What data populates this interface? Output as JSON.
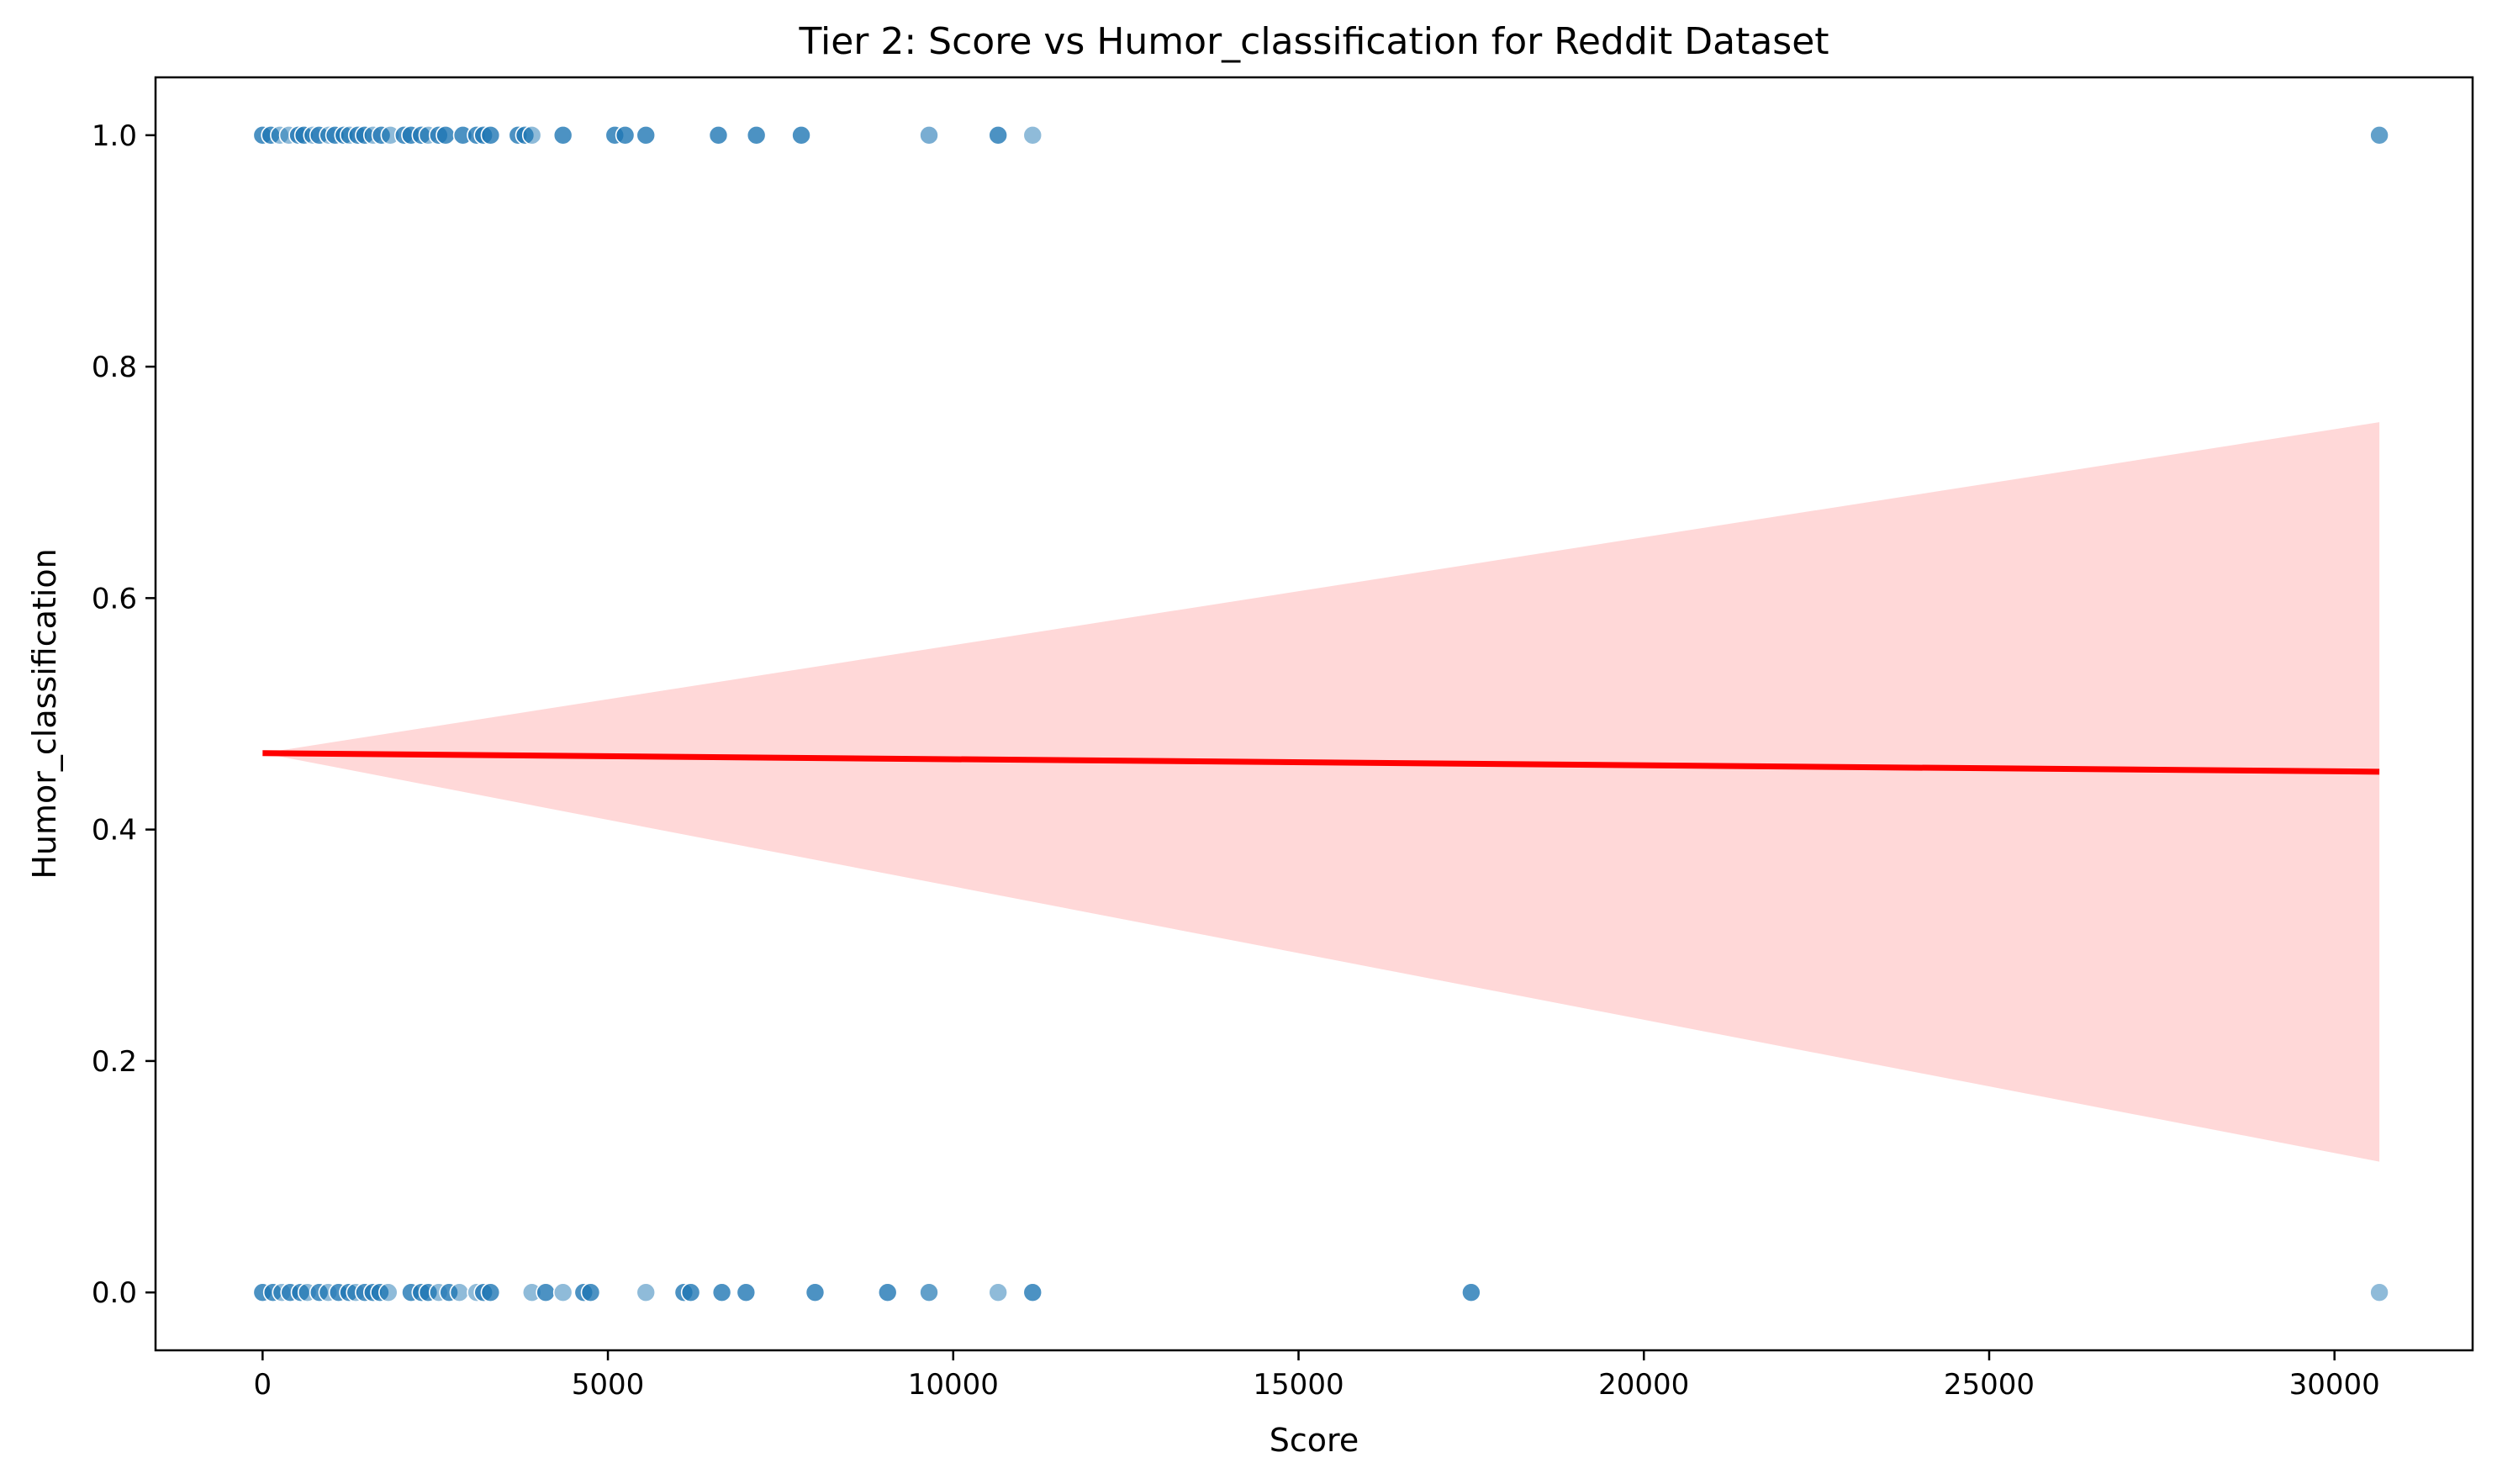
{
  "chart_data": {
    "type": "scatter",
    "title": "Tier 2: Score vs Humor_classification for Reddit Dataset",
    "xlabel": "Score",
    "ylabel": "Humor_classification",
    "xlim": [
      -1550,
      32000
    ],
    "ylim": [
      -0.05,
      1.05
    ],
    "xticks": [
      0,
      5000,
      10000,
      15000,
      20000,
      25000,
      30000
    ],
    "xtick_labels": [
      "0",
      "5000",
      "10000",
      "15000",
      "20000",
      "25000",
      "30000"
    ],
    "yticks": [
      0.0,
      0.2,
      0.4,
      0.6,
      0.8,
      1.0
    ],
    "ytick_labels": [
      "0.0",
      "0.2",
      "0.4",
      "0.6",
      "0.8",
      "1.0"
    ],
    "grid": false,
    "legend": "none",
    "colors": {
      "points": "#1f77b4",
      "regression_line": "#ff0000",
      "confidence_band": "#ffd8d8"
    },
    "series": [
      {
        "type": "scatter",
        "points": [
          {
            "x": 0,
            "y": 1,
            "alpha": 0.8
          },
          {
            "x": 120,
            "y": 1,
            "alpha": 0.8
          },
          {
            "x": 250,
            "y": 1,
            "alpha": 0.5
          },
          {
            "x": 380,
            "y": 1,
            "alpha": 0.5
          },
          {
            "x": 520,
            "y": 1,
            "alpha": 0.8
          },
          {
            "x": 600,
            "y": 1,
            "alpha": 0.8
          },
          {
            "x": 730,
            "y": 1,
            "alpha": 0.5
          },
          {
            "x": 820,
            "y": 1,
            "alpha": 0.8
          },
          {
            "x": 960,
            "y": 1,
            "alpha": 0.5
          },
          {
            "x": 1050,
            "y": 1,
            "alpha": 0.8
          },
          {
            "x": 1180,
            "y": 1,
            "alpha": 0.8
          },
          {
            "x": 1260,
            "y": 1,
            "alpha": 0.5
          },
          {
            "x": 1380,
            "y": 1,
            "alpha": 0.8
          },
          {
            "x": 1480,
            "y": 1,
            "alpha": 0.8
          },
          {
            "x": 1600,
            "y": 1,
            "alpha": 0.5
          },
          {
            "x": 1720,
            "y": 1,
            "alpha": 0.8
          },
          {
            "x": 1850,
            "y": 1,
            "alpha": 0.5
          },
          {
            "x": 2050,
            "y": 1,
            "alpha": 0.8
          },
          {
            "x": 2150,
            "y": 1,
            "alpha": 0.8
          },
          {
            "x": 2300,
            "y": 1,
            "alpha": 0.8
          },
          {
            "x": 2400,
            "y": 1,
            "alpha": 0.5
          },
          {
            "x": 2550,
            "y": 1,
            "alpha": 0.8
          },
          {
            "x": 2650,
            "y": 1,
            "alpha": 0.8
          },
          {
            "x": 2900,
            "y": 1,
            "alpha": 0.8
          },
          {
            "x": 3100,
            "y": 1,
            "alpha": 0.8
          },
          {
            "x": 3200,
            "y": 1,
            "alpha": 0.8
          },
          {
            "x": 3300,
            "y": 1,
            "alpha": 0.8
          },
          {
            "x": 3700,
            "y": 1,
            "alpha": 0.8
          },
          {
            "x": 3800,
            "y": 1,
            "alpha": 0.8
          },
          {
            "x": 3900,
            "y": 1,
            "alpha": 0.5
          },
          {
            "x": 4350,
            "y": 1,
            "alpha": 0.8
          },
          {
            "x": 5100,
            "y": 1,
            "alpha": 0.8
          },
          {
            "x": 5250,
            "y": 1,
            "alpha": 0.8
          },
          {
            "x": 5550,
            "y": 1,
            "alpha": 0.8
          },
          {
            "x": 6600,
            "y": 1,
            "alpha": 0.8
          },
          {
            "x": 7150,
            "y": 1,
            "alpha": 0.8
          },
          {
            "x": 7800,
            "y": 1,
            "alpha": 0.8
          },
          {
            "x": 9650,
            "y": 1,
            "alpha": 0.6
          },
          {
            "x": 10650,
            "y": 1,
            "alpha": 0.8
          },
          {
            "x": 11150,
            "y": 1,
            "alpha": 0.5
          },
          {
            "x": 30650,
            "y": 1,
            "alpha": 0.7
          },
          {
            "x": 0,
            "y": 0,
            "alpha": 0.8
          },
          {
            "x": 150,
            "y": 0,
            "alpha": 0.8
          },
          {
            "x": 280,
            "y": 0,
            "alpha": 0.5
          },
          {
            "x": 400,
            "y": 0,
            "alpha": 0.8
          },
          {
            "x": 550,
            "y": 0,
            "alpha": 0.8
          },
          {
            "x": 650,
            "y": 0,
            "alpha": 0.5
          },
          {
            "x": 820,
            "y": 0,
            "alpha": 0.8
          },
          {
            "x": 950,
            "y": 0,
            "alpha": 0.5
          },
          {
            "x": 1100,
            "y": 0,
            "alpha": 0.8
          },
          {
            "x": 1250,
            "y": 0,
            "alpha": 0.8
          },
          {
            "x": 1350,
            "y": 0,
            "alpha": 0.5
          },
          {
            "x": 1480,
            "y": 0,
            "alpha": 0.8
          },
          {
            "x": 1600,
            "y": 0,
            "alpha": 0.8
          },
          {
            "x": 1700,
            "y": 0,
            "alpha": 0.8
          },
          {
            "x": 1820,
            "y": 0,
            "alpha": 0.5
          },
          {
            "x": 2150,
            "y": 0,
            "alpha": 0.8
          },
          {
            "x": 2300,
            "y": 0,
            "alpha": 0.8
          },
          {
            "x": 2400,
            "y": 0,
            "alpha": 0.8
          },
          {
            "x": 2550,
            "y": 0,
            "alpha": 0.5
          },
          {
            "x": 2700,
            "y": 0,
            "alpha": 0.8
          },
          {
            "x": 2850,
            "y": 0,
            "alpha": 0.5
          },
          {
            "x": 3100,
            "y": 0,
            "alpha": 0.5
          },
          {
            "x": 3200,
            "y": 0,
            "alpha": 0.8
          },
          {
            "x": 3300,
            "y": 0,
            "alpha": 0.8
          },
          {
            "x": 3900,
            "y": 0,
            "alpha": 0.5
          },
          {
            "x": 4100,
            "y": 0,
            "alpha": 0.8
          },
          {
            "x": 4350,
            "y": 0,
            "alpha": 0.5
          },
          {
            "x": 4650,
            "y": 0,
            "alpha": 0.8
          },
          {
            "x": 4750,
            "y": 0,
            "alpha": 0.8
          },
          {
            "x": 5550,
            "y": 0,
            "alpha": 0.5
          },
          {
            "x": 6100,
            "y": 0,
            "alpha": 0.8
          },
          {
            "x": 6200,
            "y": 0,
            "alpha": 0.8
          },
          {
            "x": 6650,
            "y": 0,
            "alpha": 0.8
          },
          {
            "x": 7000,
            "y": 0,
            "alpha": 0.8
          },
          {
            "x": 8000,
            "y": 0,
            "alpha": 0.8
          },
          {
            "x": 9050,
            "y": 0,
            "alpha": 0.8
          },
          {
            "x": 9650,
            "y": 0,
            "alpha": 0.7
          },
          {
            "x": 10650,
            "y": 0,
            "alpha": 0.5
          },
          {
            "x": 11150,
            "y": 0,
            "alpha": 0.8
          },
          {
            "x": 17500,
            "y": 0,
            "alpha": 0.8
          },
          {
            "x": 30650,
            "y": 0,
            "alpha": 0.5
          }
        ]
      },
      {
        "type": "regression",
        "x_range": [
          0,
          30650
        ],
        "y_start": 0.466,
        "y_end": 0.45,
        "ci_upper_end": 0.752,
        "ci_lower_end": 0.113
      }
    ]
  }
}
